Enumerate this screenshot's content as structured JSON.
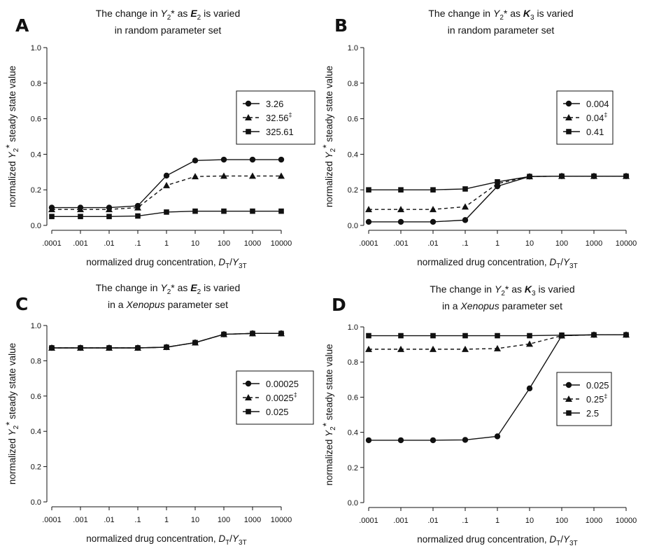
{
  "chart_data": [
    {
      "type": "line",
      "panel_label": "A",
      "title": {
        "prefix": "The change in ",
        "var": "Y",
        "var_sub": "2",
        "var_sup": "*",
        "mid": " as ",
        "param": "E",
        "param_sub": "2",
        "suffix": " is varied"
      },
      "subtitle": {
        "prefix": "in random parameter set"
      },
      "xlabel": {
        "text": "normalized drug concentration, ",
        "num": "D",
        "num_sub": "T",
        "den": "Y",
        "den_sub": "3T"
      },
      "ylabel": {
        "text": "normalized ",
        "var": "Y",
        "var_sub": "2",
        "var_sup": "*",
        "suffix": " steady state value"
      },
      "x_ticks": [
        ".0001",
        ".001",
        ".01",
        ".1",
        "1",
        "10",
        "100",
        "1000",
        "10000"
      ],
      "y_ticks": [
        "0.0",
        "0.2",
        "0.4",
        "0.6",
        "0.8",
        "1.0"
      ],
      "ylim": [
        0,
        1
      ],
      "legend_position": "right",
      "series": [
        {
          "name": "3.26",
          "marker": "circle",
          "dash": "solid",
          "values": [
            0.1,
            0.1,
            0.1,
            0.11,
            0.28,
            0.365,
            0.37,
            0.37,
            0.37
          ]
        },
        {
          "name": "32.56",
          "name_sup": "‡",
          "marker": "triangle",
          "dash": "dashed",
          "values": [
            0.09,
            0.09,
            0.09,
            0.1,
            0.225,
            0.275,
            0.278,
            0.278,
            0.278
          ]
        },
        {
          "name": "325.61",
          "marker": "square",
          "dash": "solid",
          "values": [
            0.05,
            0.05,
            0.05,
            0.053,
            0.075,
            0.08,
            0.08,
            0.08,
            0.08
          ]
        }
      ]
    },
    {
      "type": "line",
      "panel_label": "B",
      "title": {
        "prefix": "The change in ",
        "var": "Y",
        "var_sub": "2",
        "var_sup": "*",
        "mid": " as ",
        "param": "K",
        "param_sub": "3",
        "suffix": " is varied"
      },
      "subtitle": {
        "prefix": "in random parameter set"
      },
      "xlabel": {
        "text": "normalized drug concentration, ",
        "num": "D",
        "num_sub": "T",
        "den": "Y",
        "den_sub": "3T"
      },
      "ylabel": {
        "text": "normalized ",
        "var": "Y",
        "var_sub": "2",
        "var_sup": "*",
        "suffix": " steady state value"
      },
      "x_ticks": [
        ".0001",
        ".001",
        ".01",
        ".1",
        "1",
        "10",
        "100",
        "1000",
        "10000"
      ],
      "y_ticks": [
        "0.0",
        "0.2",
        "0.4",
        "0.6",
        "0.8",
        "1.0"
      ],
      "ylim": [
        0,
        1
      ],
      "legend_position": "right",
      "series": [
        {
          "name": "0.004",
          "marker": "circle",
          "dash": "solid",
          "values": [
            0.02,
            0.02,
            0.02,
            0.03,
            0.22,
            0.275,
            0.277,
            0.277,
            0.277
          ]
        },
        {
          "name": "0.04",
          "name_sup": "‡",
          "marker": "triangle",
          "dash": "dashed",
          "values": [
            0.09,
            0.09,
            0.09,
            0.105,
            0.235,
            0.275,
            0.277,
            0.277,
            0.277
          ]
        },
        {
          "name": "0.41",
          "marker": "square",
          "dash": "solid",
          "values": [
            0.2,
            0.2,
            0.2,
            0.205,
            0.245,
            0.275,
            0.277,
            0.277,
            0.277
          ]
        }
      ]
    },
    {
      "type": "line",
      "panel_label": "C",
      "title": {
        "prefix": "The change in ",
        "var": "Y",
        "var_sub": "2",
        "var_sup": "*",
        "mid": " as ",
        "param": "E",
        "param_sub": "2",
        "suffix": " is varied"
      },
      "subtitle": {
        "prefix": "in a ",
        "italic": "Xenopus",
        "suffix": "  parameter set"
      },
      "xlabel": {
        "text": "normalized drug concentration, ",
        "num": "D",
        "num_sub": "T",
        "den": "Y",
        "den_sub": "3T"
      },
      "ylabel": {
        "text": "normalized ",
        "var": "Y",
        "var_sub": "2",
        "var_sup": "*",
        "suffix": " steady state value"
      },
      "x_ticks": [
        ".0001",
        ".001",
        ".01",
        ".1",
        "1",
        "10",
        "100",
        "1000",
        "10000"
      ],
      "y_ticks": [
        "0.0",
        "0.2",
        "0.4",
        "0.6",
        "0.8",
        "1.0"
      ],
      "ylim": [
        0,
        1
      ],
      "legend_position": "right",
      "series": [
        {
          "name": "0.00025",
          "marker": "circle",
          "dash": "solid",
          "values": [
            0.873,
            0.873,
            0.873,
            0.873,
            0.877,
            0.903,
            0.95,
            0.955,
            0.955
          ]
        },
        {
          "name": "0.0025",
          "name_sup": "‡",
          "marker": "triangle",
          "dash": "dashed",
          "values": [
            0.873,
            0.873,
            0.873,
            0.873,
            0.877,
            0.903,
            0.95,
            0.955,
            0.955
          ]
        },
        {
          "name": "0.025",
          "marker": "square",
          "dash": "solid",
          "values": [
            0.873,
            0.873,
            0.873,
            0.873,
            0.877,
            0.903,
            0.95,
            0.955,
            0.955
          ]
        }
      ]
    },
    {
      "type": "line",
      "panel_label": "D",
      "title": {
        "prefix": "The change in ",
        "var": "Y",
        "var_sub": "2",
        "var_sup": "*",
        "mid": " as ",
        "param": "K",
        "param_sub": "3",
        "suffix": " is varied"
      },
      "subtitle": {
        "prefix": "in a ",
        "italic": "Xenopus",
        "suffix": "  parameter set"
      },
      "xlabel": {
        "text": "normalized drug concentration, ",
        "num": "D",
        "num_sub": "T",
        "den": "Y",
        "den_sub": "3T"
      },
      "ylabel": {
        "text": "normalized ",
        "var": "Y",
        "var_sub": "2",
        "var_sup": "*",
        "suffix": " steady state value"
      },
      "x_ticks": [
        ".0001",
        ".001",
        ".01",
        ".1",
        "1",
        "10",
        "100",
        "1000",
        "10000"
      ],
      "y_ticks": [
        "0.0",
        "0.2",
        "0.4",
        "0.6",
        "0.8",
        "1.0"
      ],
      "ylim": [
        0,
        1
      ],
      "legend_position": "right",
      "series": [
        {
          "name": "0.025",
          "marker": "circle",
          "dash": "solid",
          "values": [
            0.355,
            0.355,
            0.355,
            0.357,
            0.377,
            0.65,
            0.95,
            0.955,
            0.955
          ]
        },
        {
          "name": "0.25",
          "name_sup": "‡",
          "marker": "triangle",
          "dash": "dashed",
          "values": [
            0.873,
            0.873,
            0.873,
            0.873,
            0.877,
            0.903,
            0.95,
            0.955,
            0.955
          ]
        },
        {
          "name": "2.5",
          "marker": "square",
          "dash": "solid",
          "values": [
            0.95,
            0.95,
            0.95,
            0.95,
            0.95,
            0.95,
            0.953,
            0.955,
            0.955
          ]
        }
      ]
    }
  ]
}
